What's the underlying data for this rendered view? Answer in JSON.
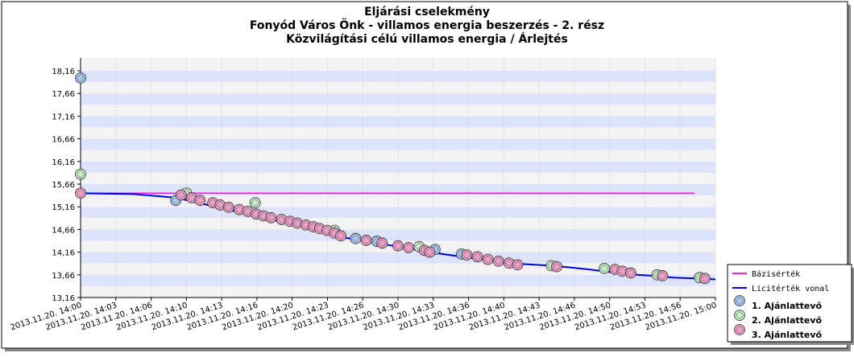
{
  "chart_data": {
    "type": "line",
    "title_lines": [
      "Eljárási cselekmény",
      "Fonyód Város Önk - villamos energia beszerzés - 2. rész",
      "Közvilágítási célú villamos energia / Árlejtés"
    ],
    "y_ticks": [
      "13,16",
      "13,66",
      "14,16",
      "14,66",
      "15,16",
      "15,66",
      "16,16",
      "16,66",
      "17,16",
      "17,66",
      "18,16"
    ],
    "ylim": [
      13.16,
      18.16
    ],
    "x_ticks": [
      "2013.11.20. 14:00",
      "2013.11.20. 14:03",
      "2013.11.20. 14:06",
      "2013.11.20. 14:10",
      "2013.11.20. 14:13",
      "2013.11.20. 14:16",
      "2013.11.20. 14:20",
      "2013.11.20. 14:23",
      "2013.11.20. 14:26",
      "2013.11.20. 14:30",
      "2013.11.20. 14:33",
      "2013.11.20. 14:36",
      "2013.11.20. 14:40",
      "2013.11.20. 14:43",
      "2013.11.20. 14:46",
      "2013.11.20. 14:50",
      "2013.11.20. 14:53",
      "2013.11.20. 14:56",
      "2013.11.20. 15:00"
    ],
    "xlim_minutes": [
      0,
      60
    ],
    "x_unit": "minutes after 2013.11.20. 14:00",
    "grid": "horizontal alternating bands",
    "legend_position": "bottom-right",
    "legend": [
      {
        "label": "Bázisérték",
        "kind": "line",
        "color": "#e020e0"
      },
      {
        "label": "Licitérték vonal",
        "kind": "line",
        "color": "#0000dd"
      },
      {
        "label": "1. Ajánlattevő",
        "kind": "diamond",
        "color": "#a8c8f0"
      },
      {
        "label": "2. Ajánlattevő",
        "kind": "diamond",
        "color": "#c8f0c8"
      },
      {
        "label": "3. Ajánlattevő",
        "kind": "diamond",
        "color": "#f0a0c8"
      }
    ],
    "base_value": {
      "name": "Bázisérték",
      "y": 15.46,
      "color": "#e020e0"
    },
    "bid_line": {
      "name": "Licitérték vonal",
      "color": "#0000dd",
      "points": [
        [
          0,
          15.46
        ],
        [
          5,
          15.44
        ],
        [
          9,
          15.36
        ],
        [
          12,
          15.2
        ],
        [
          15,
          15.04
        ],
        [
          18,
          14.88
        ],
        [
          21,
          14.72
        ],
        [
          24,
          14.52
        ],
        [
          27,
          14.4
        ],
        [
          30,
          14.28
        ],
        [
          33,
          14.16
        ],
        [
          36,
          14.06
        ],
        [
          38,
          14.0
        ],
        [
          40,
          13.92
        ],
        [
          44,
          13.87
        ],
        [
          46,
          13.83
        ],
        [
          48,
          13.78
        ],
        [
          50,
          13.72
        ],
        [
          52,
          13.67
        ],
        [
          54,
          13.64
        ],
        [
          56,
          13.6
        ],
        [
          58,
          13.58
        ],
        [
          60,
          13.56
        ]
      ]
    },
    "series": [
      {
        "name": "1. Ajánlattevő",
        "color": "#a8c8f0",
        "points": [
          [
            0,
            18.0
          ],
          [
            9,
            15.3
          ],
          [
            26,
            14.46
          ],
          [
            28,
            14.4
          ],
          [
            33.5,
            14.22
          ],
          [
            36,
            14.12
          ]
        ]
      },
      {
        "name": "2. Ajánlattevő",
        "color": "#c8f0c8",
        "points": [
          [
            0,
            15.88
          ],
          [
            10,
            15.46
          ],
          [
            16.5,
            15.25
          ],
          [
            24,
            14.64
          ],
          [
            32,
            14.28
          ],
          [
            44.5,
            13.86
          ],
          [
            49.5,
            13.8
          ],
          [
            54.5,
            13.66
          ],
          [
            58.5,
            13.6
          ]
        ]
      },
      {
        "name": "3. Ajánlattevő",
        "color": "#f0a0c8",
        "points": [
          [
            0,
            15.46
          ],
          [
            9.5,
            15.42
          ],
          [
            10.5,
            15.36
          ],
          [
            11.3,
            15.3
          ],
          [
            12.5,
            15.25
          ],
          [
            13.2,
            15.2
          ],
          [
            14,
            15.15
          ],
          [
            15,
            15.1
          ],
          [
            15.8,
            15.06
          ],
          [
            16.6,
            15.0
          ],
          [
            17.3,
            14.96
          ],
          [
            18,
            14.92
          ],
          [
            19,
            14.88
          ],
          [
            19.8,
            14.84
          ],
          [
            20.5,
            14.8
          ],
          [
            21.3,
            14.76
          ],
          [
            22,
            14.72
          ],
          [
            22.6,
            14.68
          ],
          [
            23.3,
            14.64
          ],
          [
            24,
            14.58
          ],
          [
            24.6,
            14.52
          ],
          [
            27,
            14.42
          ],
          [
            28.5,
            14.36
          ],
          [
            30,
            14.3
          ],
          [
            31,
            14.26
          ],
          [
            32.5,
            14.2
          ],
          [
            33,
            14.16
          ],
          [
            36.5,
            14.1
          ],
          [
            37.5,
            14.06
          ],
          [
            38.5,
            14.0
          ],
          [
            39.5,
            13.96
          ],
          [
            40.5,
            13.92
          ],
          [
            41.3,
            13.88
          ],
          [
            45,
            13.84
          ],
          [
            50.5,
            13.78
          ],
          [
            51.2,
            13.74
          ],
          [
            52,
            13.7
          ],
          [
            55,
            13.64
          ],
          [
            59,
            13.58
          ]
        ]
      }
    ]
  }
}
